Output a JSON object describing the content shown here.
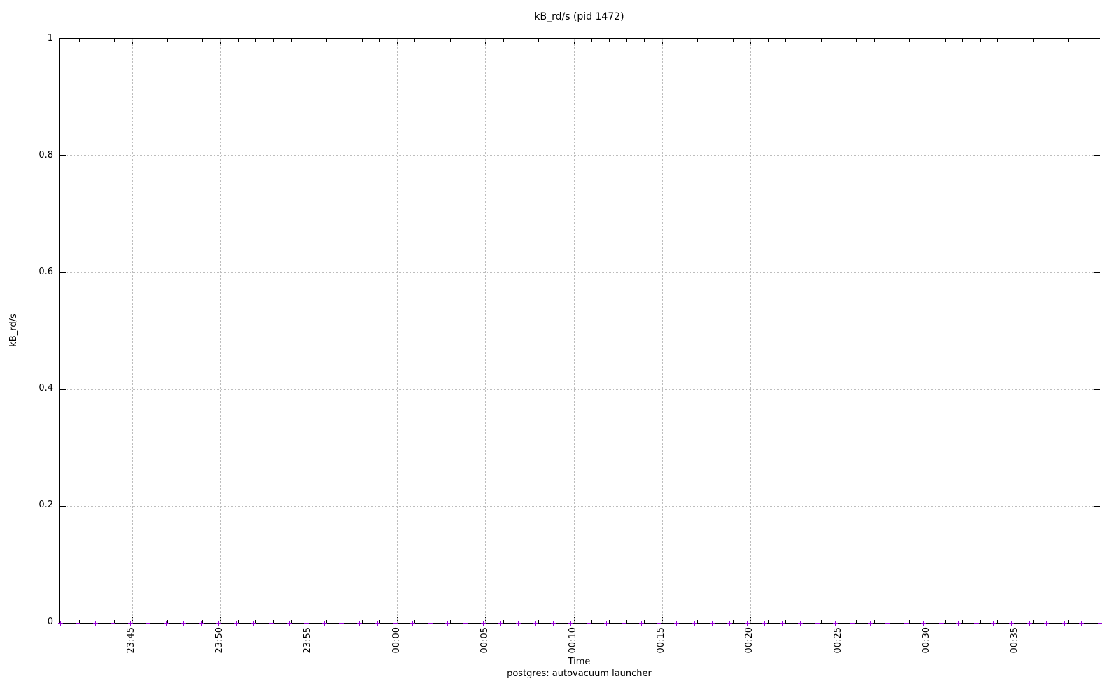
{
  "title": "kB_rd/s (pid 1472)",
  "footer_legend": "postgres: autovacuum launcher",
  "axes": {
    "y": {
      "label": "kB_rd/s",
      "tick_labels": [
        "0",
        "0.2",
        "0.4",
        "0.6",
        "0.8",
        "1"
      ],
      "range": [
        0,
        1
      ]
    },
    "x": {
      "label": "Time",
      "tick_labels": [
        "23:45",
        "23:50",
        "23:55",
        "00:00",
        "00:05",
        "00:10",
        "00:15",
        "00:20",
        "00:25",
        "00:30",
        "00:35"
      ],
      "minor_ticks_per_major": 5
    }
  },
  "colors": {
    "marker": "#9400d3",
    "grid": "#bdbdbd",
    "axis": "#000000",
    "background": "#ffffff"
  },
  "chart_data": {
    "type": "scatter",
    "title": "kB_rd/s (pid 1472)",
    "xlabel": "Time",
    "ylabel": "kB_rd/s",
    "ylim": [
      0,
      1
    ],
    "y_tick_values": [
      0,
      0.2,
      0.4,
      0.6,
      0.8,
      1
    ],
    "x_tick_labels": [
      "23:45",
      "23:50",
      "23:55",
      "00:00",
      "00:05",
      "00:10",
      "00:15",
      "00:20",
      "00:25",
      "00:30",
      "00:35"
    ],
    "grid": true,
    "grid_style": "dotted",
    "legend_position": "below-x-label",
    "series": [
      {
        "name": "postgres: autovacuum launcher",
        "marker": "plus",
        "color": "#9400d3",
        "sample_interval": "1 minute",
        "times": [
          "23:41",
          "23:42",
          "23:43",
          "23:44",
          "23:45",
          "23:46",
          "23:47",
          "23:48",
          "23:49",
          "23:50",
          "23:51",
          "23:52",
          "23:53",
          "23:54",
          "23:55",
          "23:56",
          "23:57",
          "23:58",
          "23:59",
          "00:00",
          "00:01",
          "00:02",
          "00:03",
          "00:04",
          "00:05",
          "00:06",
          "00:07",
          "00:08",
          "00:09",
          "00:10",
          "00:11",
          "00:12",
          "00:13",
          "00:14",
          "00:15",
          "00:16",
          "00:17",
          "00:18",
          "00:19",
          "00:20",
          "00:21",
          "00:22",
          "00:23",
          "00:24",
          "00:25",
          "00:26",
          "00:27",
          "00:28",
          "00:29",
          "00:30",
          "00:31",
          "00:32",
          "00:33",
          "00:34",
          "00:35",
          "00:36",
          "00:37",
          "00:38",
          "00:39",
          "00:40"
        ],
        "values": [
          0,
          0,
          0,
          0,
          0,
          0,
          0,
          0,
          0,
          0,
          0,
          0,
          0,
          0,
          0,
          0,
          0,
          0,
          0,
          0,
          0,
          0,
          0,
          0,
          0,
          0,
          0,
          0,
          0,
          0,
          0,
          0,
          0,
          0,
          0,
          0,
          0,
          0,
          0,
          0,
          0,
          0,
          0,
          0,
          0,
          0,
          0,
          0,
          0,
          0,
          0,
          0,
          0,
          0,
          0,
          0,
          0,
          0,
          0,
          0
        ]
      }
    ]
  }
}
